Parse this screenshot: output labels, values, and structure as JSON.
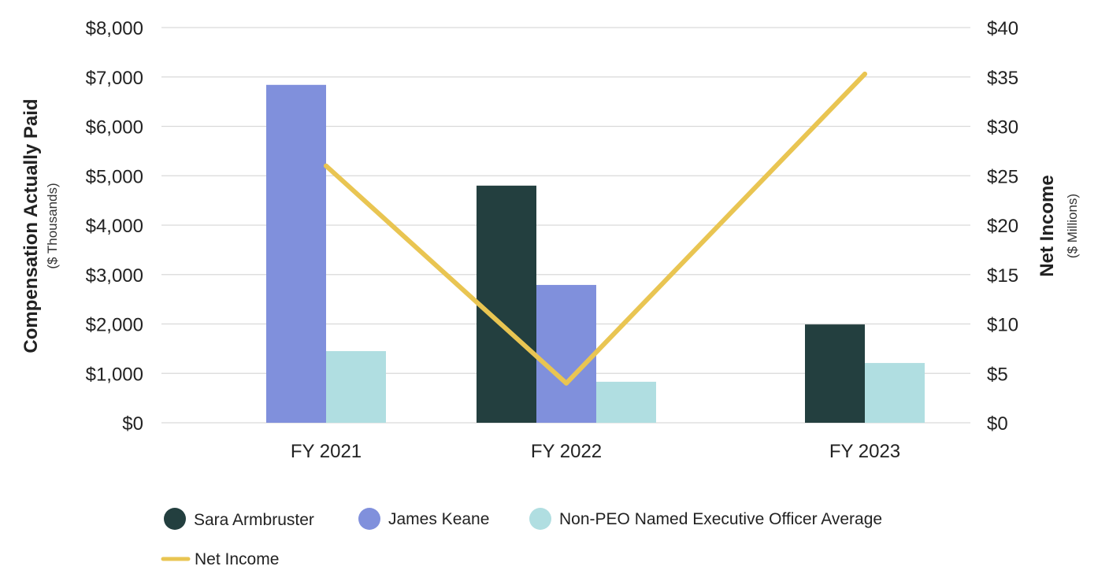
{
  "chart_data": {
    "type": "bar",
    "categories": [
      "FY 2021",
      "FY 2022",
      "FY 2023"
    ],
    "series": [
      {
        "name": "Sara Armbruster",
        "color": "#233f3f",
        "values": [
          null,
          4800,
          1990
        ]
      },
      {
        "name": "James Keane",
        "color": "#8090dc",
        "values": [
          6840,
          2790,
          null
        ]
      },
      {
        "name": "Non-PEO Named Executive Officer Average",
        "color": "#b0dee1",
        "values": [
          1450,
          830,
          1210
        ]
      }
    ],
    "line_series": {
      "name": "Net Income",
      "color": "#e9c552",
      "axis": "right",
      "values": [
        26,
        4,
        35.3
      ]
    },
    "left_axis": {
      "title": "Compensation Actually Paid",
      "subtitle": "($ Thousands)",
      "ylim": [
        0,
        8000
      ],
      "ticks": [
        0,
        1000,
        2000,
        3000,
        4000,
        5000,
        6000,
        7000,
        8000
      ],
      "tick_labels": [
        "$0",
        "$1,000",
        "$2,000",
        "$3,000",
        "$4,000",
        "$5,000",
        "$6,000",
        "$7,000",
        "$8,000"
      ]
    },
    "right_axis": {
      "title": "Net Income",
      "subtitle": "($ Millions)",
      "ylim": [
        0,
        40
      ],
      "ticks": [
        0,
        5,
        10,
        15,
        20,
        25,
        30,
        35,
        40
      ],
      "tick_labels": [
        "$0",
        "$5",
        "$10",
        "$15",
        "$20",
        "$25",
        "$30",
        "$35",
        "$40"
      ]
    },
    "grid": true,
    "legend": {
      "placement": "bottom-left",
      "items": [
        {
          "label": "Sara Armbruster",
          "marker": "circle",
          "color": "#233f3f"
        },
        {
          "label": "James Keane",
          "marker": "circle",
          "color": "#8090dc"
        },
        {
          "label": "Non-PEO Named Executive Officer Average",
          "marker": "circle",
          "color": "#b0dee1"
        },
        {
          "label": "Net Income",
          "marker": "line",
          "color": "#e9c552"
        }
      ]
    }
  }
}
